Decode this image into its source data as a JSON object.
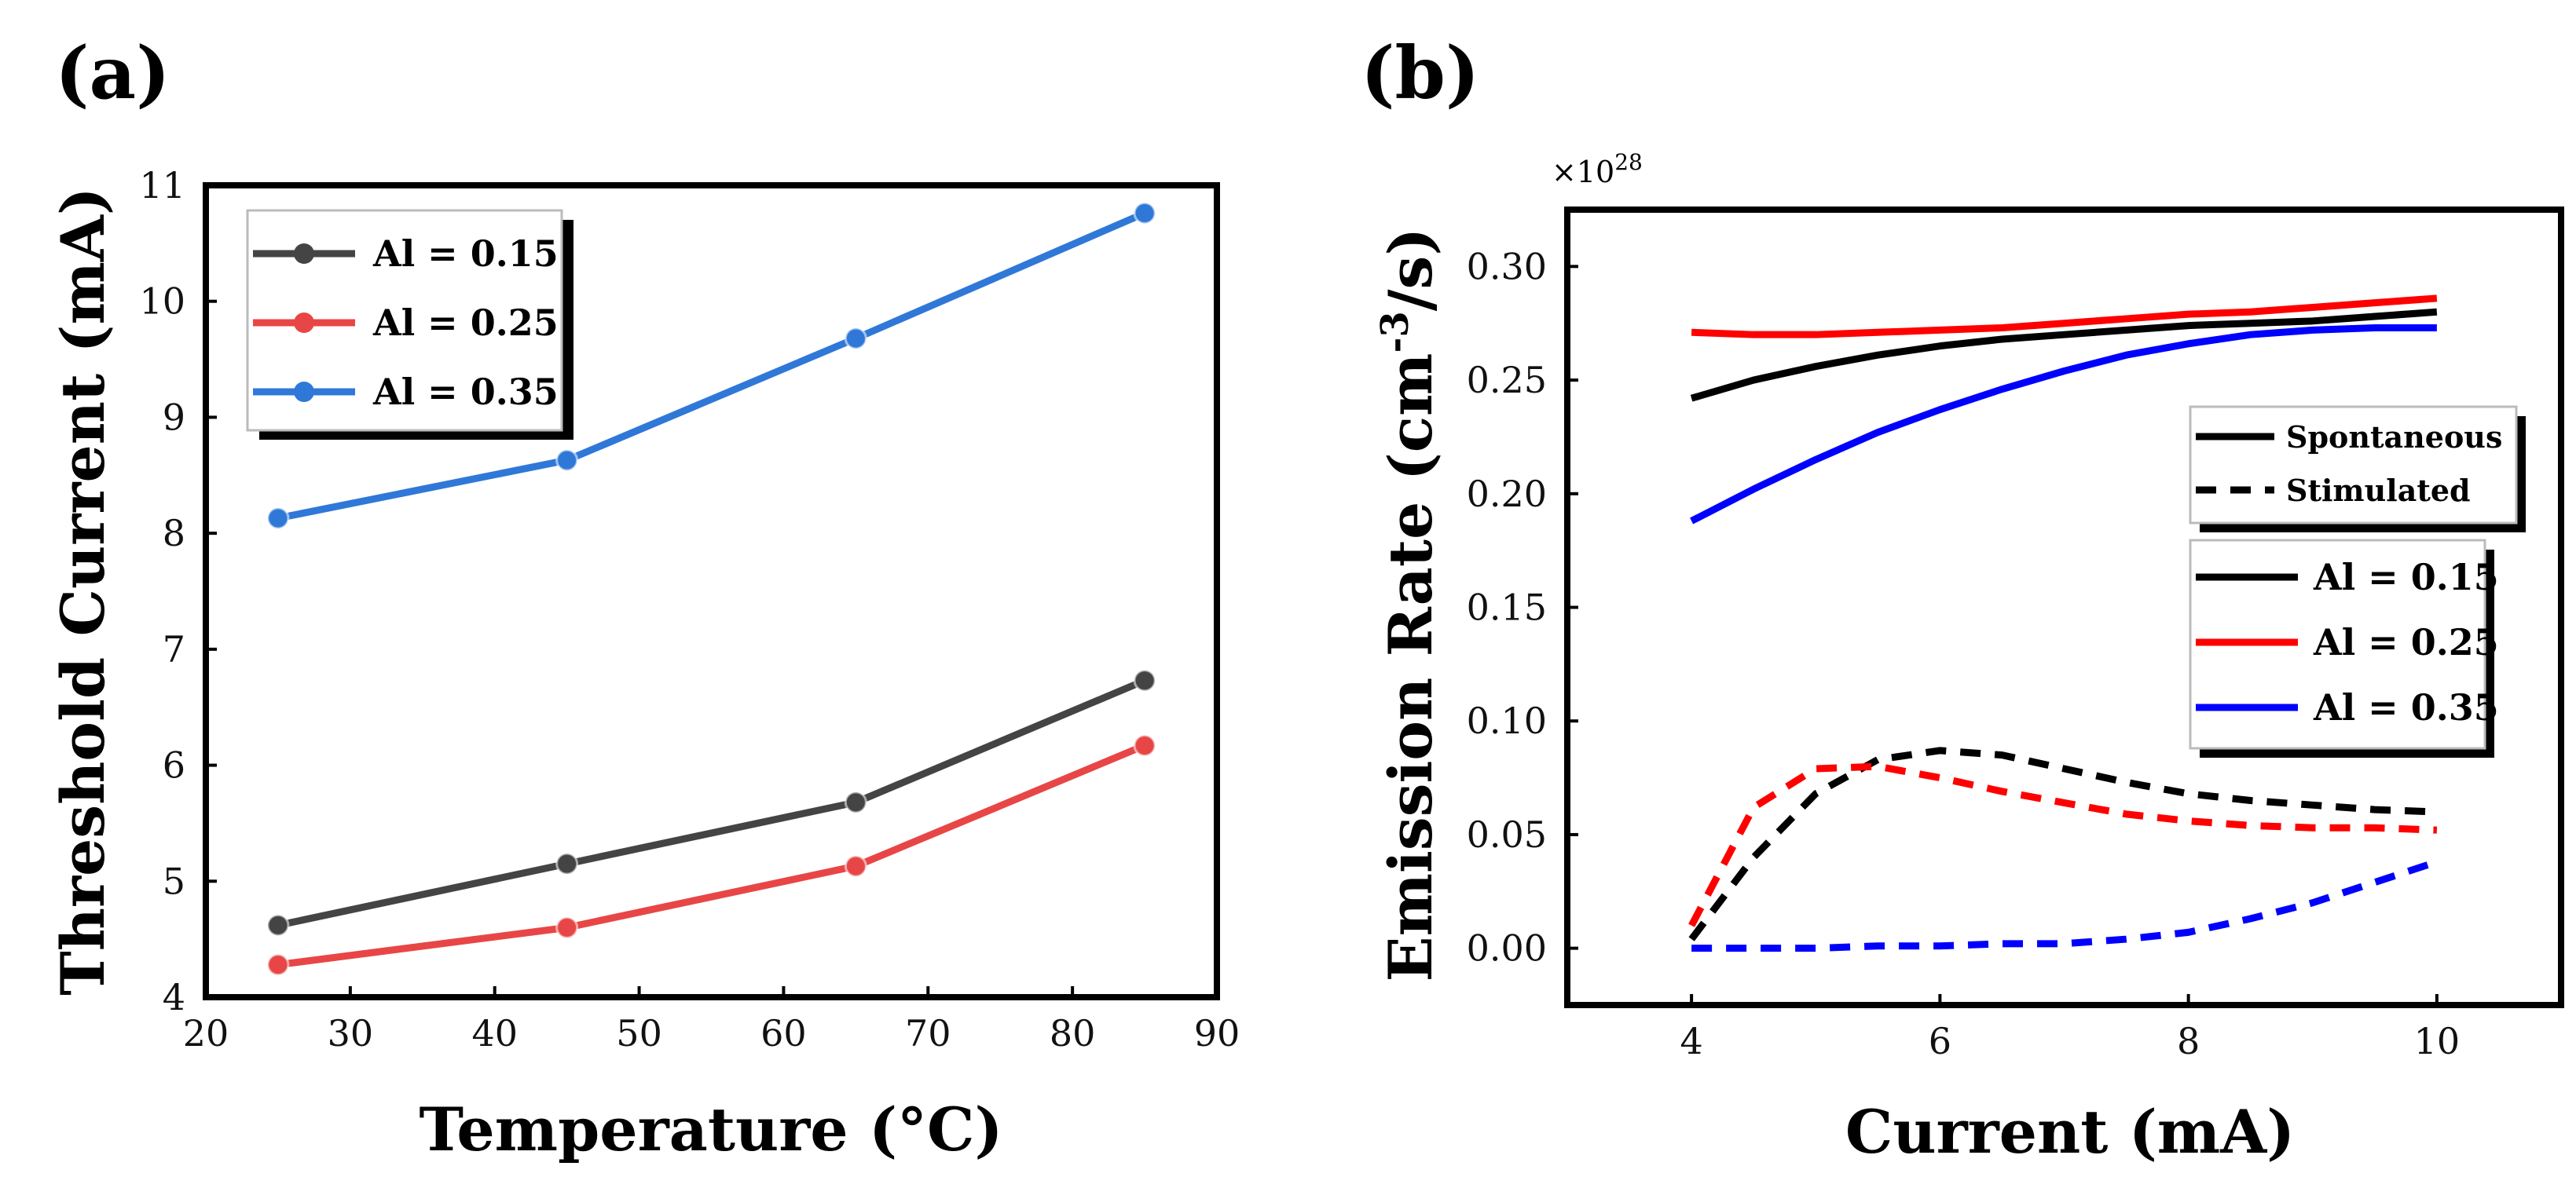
{
  "chart_data": [
    {
      "panel": "(a)",
      "type": "line",
      "xlabel": "Temperature (°C)",
      "ylabel": "Threshold Current (mA)",
      "xlim": [
        20,
        90
      ],
      "ylim": [
        4,
        11
      ],
      "xticks": [
        "20",
        "30",
        "40",
        "50",
        "60",
        "70",
        "80",
        "90"
      ],
      "yticks": [
        "4",
        "5",
        "6",
        "7",
        "8",
        "9",
        "10",
        "11"
      ],
      "x": [
        25,
        45,
        65,
        85
      ],
      "legend_position": "top-left",
      "series": [
        {
          "name": "Al = 0.15",
          "color": "#444444",
          "values": [
            4.62,
            5.15,
            5.68,
            6.73
          ]
        },
        {
          "name": "Al = 0.25",
          "color": "#e84646",
          "values": [
            4.28,
            4.6,
            5.13,
            6.17
          ]
        },
        {
          "name": "Al = 0.35",
          "color": "#2f78d8",
          "values": [
            8.13,
            8.63,
            9.68,
            10.76
          ]
        }
      ]
    },
    {
      "panel": "(b)",
      "type": "line",
      "xlabel": "Current (mA)",
      "ylabel_main": "Emission Rate (cm",
      "ylabel_sup": "-3",
      "ylabel_tail": "/s)",
      "multiplier_base": "×10",
      "multiplier_exp": "28",
      "xlim": [
        3,
        11
      ],
      "ylim": [
        -0.025,
        0.325
      ],
      "xticks": [
        "4",
        "6",
        "8",
        "10"
      ],
      "xtick_values": [
        4,
        6,
        8,
        10
      ],
      "yticks": [
        "0.00",
        "0.05",
        "0.10",
        "0.15",
        "0.20",
        "0.25",
        "0.30"
      ],
      "ytick_values": [
        0,
        0.05,
        0.1,
        0.15,
        0.2,
        0.25,
        0.3
      ],
      "style_legend": [
        "Spontaneous",
        "Stimulated"
      ],
      "x": [
        4,
        4.5,
        5,
        5.5,
        6,
        6.5,
        7,
        7.5,
        8,
        8.5,
        9,
        9.5,
        10
      ],
      "series": [
        {
          "name": "Al = 0.15",
          "kind": "Spontaneous",
          "color": "#000000",
          "values": [
            0.242,
            0.25,
            0.256,
            0.261,
            0.265,
            0.268,
            0.27,
            0.272,
            0.274,
            0.275,
            0.276,
            0.278,
            0.28
          ]
        },
        {
          "name": "Al = 0.25",
          "kind": "Spontaneous",
          "color": "#ff0000",
          "values": [
            0.271,
            0.27,
            0.27,
            0.271,
            0.272,
            0.273,
            0.275,
            0.277,
            0.279,
            0.28,
            0.282,
            0.284,
            0.286
          ]
        },
        {
          "name": "Al = 0.35",
          "kind": "Spontaneous",
          "color": "#0000ff",
          "values": [
            0.188,
            0.202,
            0.215,
            0.227,
            0.237,
            0.246,
            0.254,
            0.261,
            0.266,
            0.27,
            0.272,
            0.273,
            0.273
          ]
        },
        {
          "name": "Al = 0.15",
          "kind": "Stimulated",
          "color": "#000000",
          "values": [
            0.004,
            0.04,
            0.068,
            0.083,
            0.087,
            0.085,
            0.079,
            0.073,
            0.068,
            0.065,
            0.063,
            0.061,
            0.06
          ]
        },
        {
          "name": "Al = 0.25",
          "kind": "Stimulated",
          "color": "#ff0000",
          "values": [
            0.01,
            0.062,
            0.079,
            0.08,
            0.075,
            0.069,
            0.064,
            0.059,
            0.056,
            0.054,
            0.053,
            0.053,
            0.052
          ]
        },
        {
          "name": "Al = 0.35",
          "kind": "Stimulated",
          "color": "#0000ff",
          "values": [
            0.0,
            0.0,
            0.0,
            0.001,
            0.001,
            0.002,
            0.002,
            0.004,
            0.007,
            0.013,
            0.02,
            0.029,
            0.038
          ]
        }
      ],
      "legend_names": [
        "Al = 0.15",
        "Al = 0.25",
        "Al = 0.35"
      ],
      "legend_colors": [
        "#000000",
        "#ff0000",
        "#0000ff"
      ]
    }
  ]
}
